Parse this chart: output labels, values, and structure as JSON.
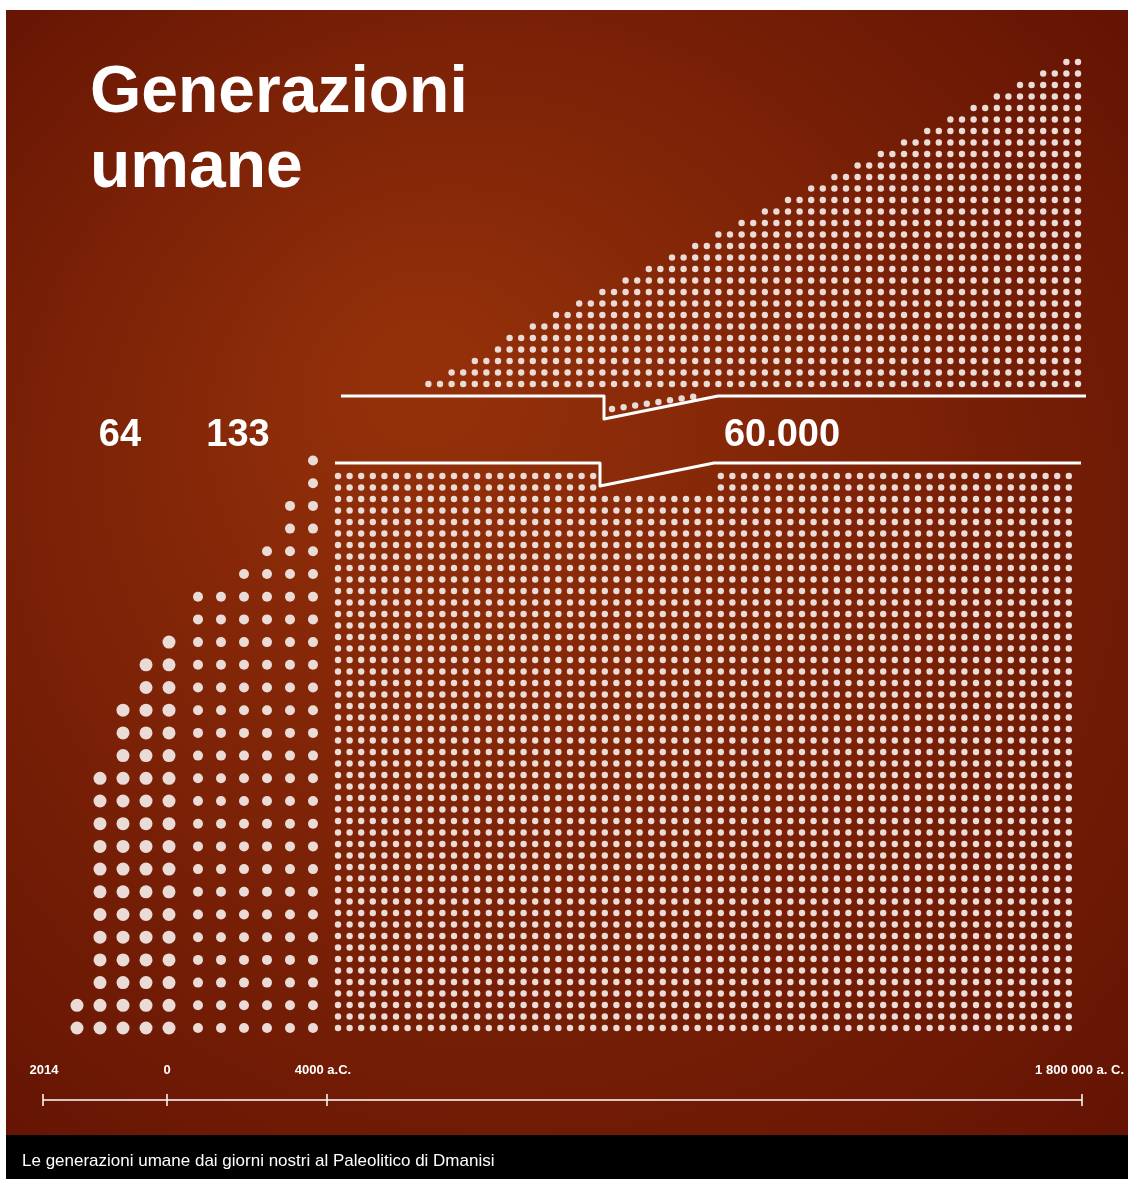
{
  "chart_data": {
    "type": "other",
    "title": "Generazioni umane",
    "values": [
      64,
      133,
      60000
    ],
    "value_labels": [
      "64",
      "133",
      "60.000"
    ],
    "color": "#eadbd6",
    "annotations": [
      "2014",
      "0",
      "4000 a.C.",
      "1 800 000 a. C.",
      "Le generazioni umane dai giorni nostri al Paleolitico di Dmanisi"
    ]
  }
}
